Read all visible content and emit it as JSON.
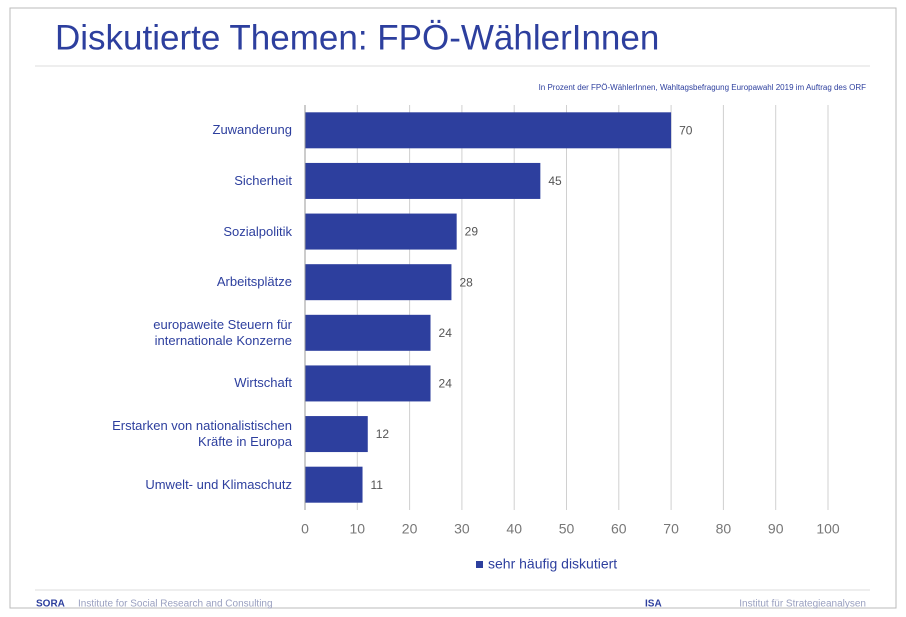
{
  "chart_data": {
    "type": "bar",
    "orientation": "horizontal",
    "title": "Diskutierte Themen: FPÖ-WählerInnen",
    "subtitle": "In Prozent der FPÖ-WählerInnen, Wahltagsbefragung Europawahl 2019 im Auftrag des ORF",
    "categories": [
      "Zuwanderung",
      "Sicherheit",
      "Sozialpolitik",
      "Arbeitsplätze",
      "europaweite Steuern für internationale Konzerne",
      "Wirtschaft",
      "Erstarken von nationalistischen Kräfte in Europa",
      "Umwelt- und Klimaschutz"
    ],
    "series": [
      {
        "name": "sehr häufig diskutiert",
        "color": "#2d3f9e",
        "values": [
          70,
          45,
          29,
          28,
          24,
          24,
          12,
          11
        ]
      }
    ],
    "xlim": [
      0,
      100
    ],
    "xticks": [
      0,
      10,
      20,
      30,
      40,
      50,
      60,
      70,
      80,
      90,
      100
    ],
    "grid": true,
    "legend": "bottom"
  },
  "footer": {
    "left_brand": "SORA",
    "left_text": "Institute for Social Research and Consulting",
    "right_brand": "ISA",
    "right_text": "Institut für Strategieanalysen"
  }
}
